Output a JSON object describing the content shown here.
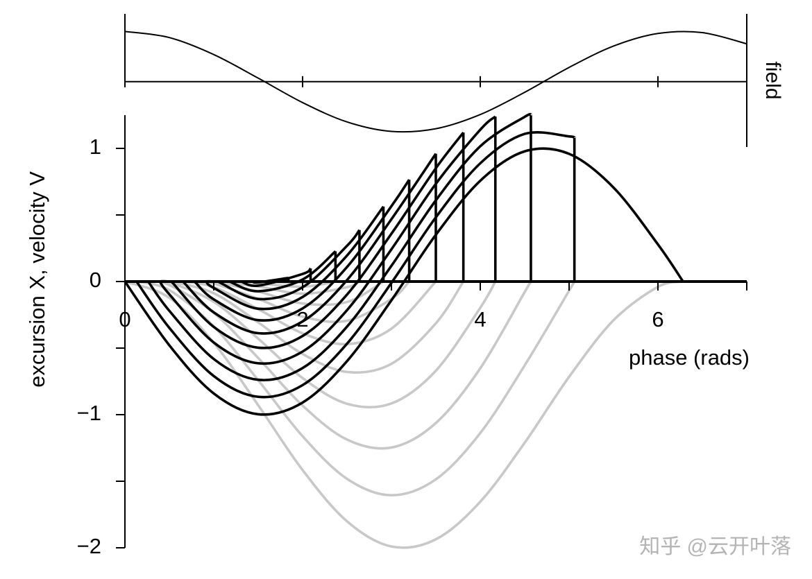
{
  "chart_data": [
    {
      "type": "line",
      "ylabel": "field",
      "xlim": [
        0,
        7
      ],
      "ylim": [
        -1.3,
        1.35
      ],
      "tick_marks": [
        0,
        2,
        4,
        6
      ],
      "series": [
        {
          "color": "#000000",
          "x": [
            0,
            0.5,
            1,
            1.5,
            2,
            2.5,
            3,
            3.5,
            4,
            4.5,
            5,
            5.5,
            6,
            6.5,
            7
          ],
          "values": [
            1,
            0.878,
            0.54,
            0.071,
            -0.416,
            -0.801,
            -0.99,
            -0.936,
            -0.654,
            -0.211,
            0.284,
            0.709,
            0.96,
            0.977,
            0.754
          ]
        }
      ]
    },
    {
      "type": "line",
      "xlabel": "phase (rads)",
      "ylabel": "excursion X, velocity V",
      "xlim": [
        0,
        7
      ],
      "ylim": [
        -2,
        1.25
      ],
      "xticks": [
        0,
        2,
        4,
        6
      ],
      "xminor": [
        1,
        3,
        5,
        7
      ],
      "yticks": [
        {
          "value": -2,
          "label": "−2"
        },
        {
          "value": -1,
          "label": "−1"
        },
        0,
        1
      ],
      "yminor": [
        -1.5,
        -0.5,
        0.5
      ],
      "series": [
        {
          "color": "#c8c8c8",
          "x": [
            0,
            0.5,
            1,
            1.5,
            2,
            2.5,
            3,
            3.5,
            4,
            4.5,
            5,
            5.5,
            6,
            6.283
          ],
          "values": [
            0,
            -0.122,
            -0.46,
            -0.929,
            -1.416,
            -1.801,
            -1.99,
            -1.936,
            -1.654,
            -1.211,
            -0.716,
            -0.291,
            -0.04,
            0
          ]
        },
        {
          "color": "#c8c8c8",
          "x": [
            0.131,
            0.5,
            1,
            1.5,
            2,
            2.5,
            3,
            3.5,
            4,
            4.5,
            5,
            5.06
          ],
          "values": [
            0,
            -0.065,
            -0.337,
            -0.741,
            -1.162,
            -1.482,
            -1.605,
            -1.486,
            -1.138,
            -0.63,
            -0.069,
            0
          ]
        },
        {
          "color": "#c8c8c8",
          "x": [
            0.262,
            0.5,
            1,
            1.5,
            2,
            2.5,
            3,
            3.5,
            4,
            4.5,
            4.57
          ],
          "values": [
            0,
            -0.026,
            -0.235,
            -0.574,
            -0.932,
            -1.187,
            -1.247,
            -1.063,
            -0.652,
            -0.079,
            0
          ]
        },
        {
          "color": "#c8c8c8",
          "x": [
            0.393,
            0.5,
            1,
            1.5,
            2,
            2.5,
            3,
            3.5,
            4,
            4.17
          ],
          "values": [
            0,
            -0.005,
            -0.152,
            -0.429,
            -0.725,
            -0.918,
            -0.916,
            -0.67,
            -0.197,
            0
          ]
        },
        {
          "color": "#c8c8c8",
          "x": [
            0.524,
            1,
            1.5,
            2,
            2.5,
            3,
            3.5,
            3.81
          ],
          "values": [
            0,
            -0.088,
            -0.307,
            -0.544,
            -0.679,
            -0.618,
            -0.314,
            0
          ]
        },
        {
          "color": "#c8c8c8",
          "x": [
            0.654,
            1,
            1.5,
            2,
            2.5,
            3,
            3.5
          ],
          "values": [
            0,
            -0.042,
            -0.207,
            -0.389,
            -0.47,
            -0.354,
            0
          ]
        },
        {
          "color": "#c8c8c8",
          "x": [
            0.785,
            1,
            1.5,
            2,
            2.5,
            3,
            3.2
          ],
          "values": [
            0,
            -0.015,
            -0.13,
            -0.264,
            -0.295,
            -0.131,
            0
          ]
        },
        {
          "color": "#c8c8c8",
          "x": [
            0.916,
            1,
            1.5,
            2,
            2.5,
            2.91
          ],
          "values": [
            0,
            -0.002,
            -0.075,
            -0.165,
            -0.154,
            0
          ]
        },
        {
          "color": "#c8c8c8",
          "x": [
            1.047,
            1.5,
            2,
            2.5,
            2.64
          ],
          "values": [
            0,
            -0.037,
            -0.091,
            -0.043,
            0
          ]
        },
        {
          "color": "#c8c8c8",
          "x": [
            1.178,
            1.5,
            2,
            2.37
          ],
          "values": [
            0,
            -0.014,
            -0.039,
            0
          ]
        },
        {
          "color": "#c8c8c8",
          "x": [
            1.309,
            1.5,
            2,
            2.09
          ],
          "values": [
            0,
            -0.003,
            -0.007,
            0
          ]
        },
        {
          "color": "#c8c8c8",
          "x": [
            1.44,
            1.5,
            1.84
          ],
          "values": [
            0,
            -0.001,
            0
          ]
        },
        {
          "color": "#000000",
          "drop": true,
          "x": [
            0,
            0.5,
            1,
            1.5,
            2,
            2.5,
            3,
            3.5,
            4,
            4.5,
            5,
            5.5,
            6,
            6.283
          ],
          "values": [
            0,
            -0.479,
            -0.841,
            -0.997,
            -0.909,
            -0.598,
            -0.141,
            0.351,
            0.757,
            0.978,
            0.959,
            0.706,
            0.279,
            0
          ]
        },
        {
          "color": "#000000",
          "drop": true,
          "x": [
            0.131,
            0.5,
            1,
            1.5,
            2,
            2.5,
            3,
            3.5,
            4,
            4.5,
            5,
            5.06
          ],
          "values": [
            0,
            -0.348,
            -0.71,
            -0.866,
            -0.778,
            -0.467,
            -0.01,
            0.482,
            0.888,
            1.109,
            1.09,
            1.078
          ]
        },
        {
          "color": "#000000",
          "drop": true,
          "x": [
            0.262,
            0.5,
            1,
            1.5,
            2,
            2.5,
            3,
            3.5,
            4,
            4.5,
            4.57
          ],
          "values": [
            0,
            -0.22,
            -0.582,
            -0.738,
            -0.65,
            -0.339,
            0.118,
            0.61,
            1.016,
            1.237,
            1.249
          ]
        },
        {
          "color": "#000000",
          "drop": true,
          "x": [
            0.393,
            0.5,
            1,
            1.5,
            2,
            2.5,
            3,
            3.5,
            4,
            4.17
          ],
          "values": [
            0,
            -0.096,
            -0.458,
            -0.614,
            -0.526,
            -0.215,
            0.242,
            0.734,
            1.14,
            1.239
          ]
        },
        {
          "color": "#000000",
          "drop": true,
          "x": [
            0.524,
            1,
            1.5,
            2,
            2.5,
            3,
            3.5,
            3.81
          ],
          "values": [
            0,
            -0.341,
            -0.497,
            -0.409,
            -0.098,
            0.359,
            0.851,
            1.119
          ]
        },
        {
          "color": "#000000",
          "drop": true,
          "x": [
            0.654,
            1,
            1.5,
            2,
            2.5,
            3,
            3.5
          ],
          "values": [
            0,
            -0.232,
            -0.388,
            -0.3,
            0.011,
            0.468,
            0.96
          ]
        },
        {
          "color": "#000000",
          "drop": true,
          "x": [
            0.785,
            1,
            1.5,
            2,
            2.5,
            3,
            3.2
          ],
          "values": [
            0,
            -0.134,
            -0.29,
            -0.202,
            0.109,
            0.566,
            0.765
          ]
        },
        {
          "color": "#000000",
          "drop": true,
          "x": [
            0.916,
            1,
            1.5,
            2,
            2.5,
            2.91
          ],
          "values": [
            0,
            -0.048,
            -0.204,
            -0.116,
            0.195,
            0.563
          ]
        },
        {
          "color": "#000000",
          "drop": true,
          "x": [
            1.047,
            1.5,
            2,
            2.5,
            2.64
          ],
          "values": [
            0,
            -0.131,
            -0.043,
            0.268,
            0.387
          ]
        },
        {
          "color": "#000000",
          "drop": true,
          "x": [
            1.178,
            1.5,
            2,
            2.37
          ],
          "values": [
            0,
            -0.073,
            0.015,
            0.227
          ]
        },
        {
          "color": "#000000",
          "drop": true,
          "x": [
            1.309,
            1.5,
            2,
            2.09
          ],
          "values": [
            0,
            -0.031,
            0.057,
            0.098
          ]
        },
        {
          "color": "#000000",
          "drop": true,
          "x": [
            1.44,
            1.5,
            1.84
          ],
          "values": [
            0,
            -0.006,
            0.027
          ]
        }
      ]
    }
  ],
  "watermark": "知乎 @云开叶落"
}
